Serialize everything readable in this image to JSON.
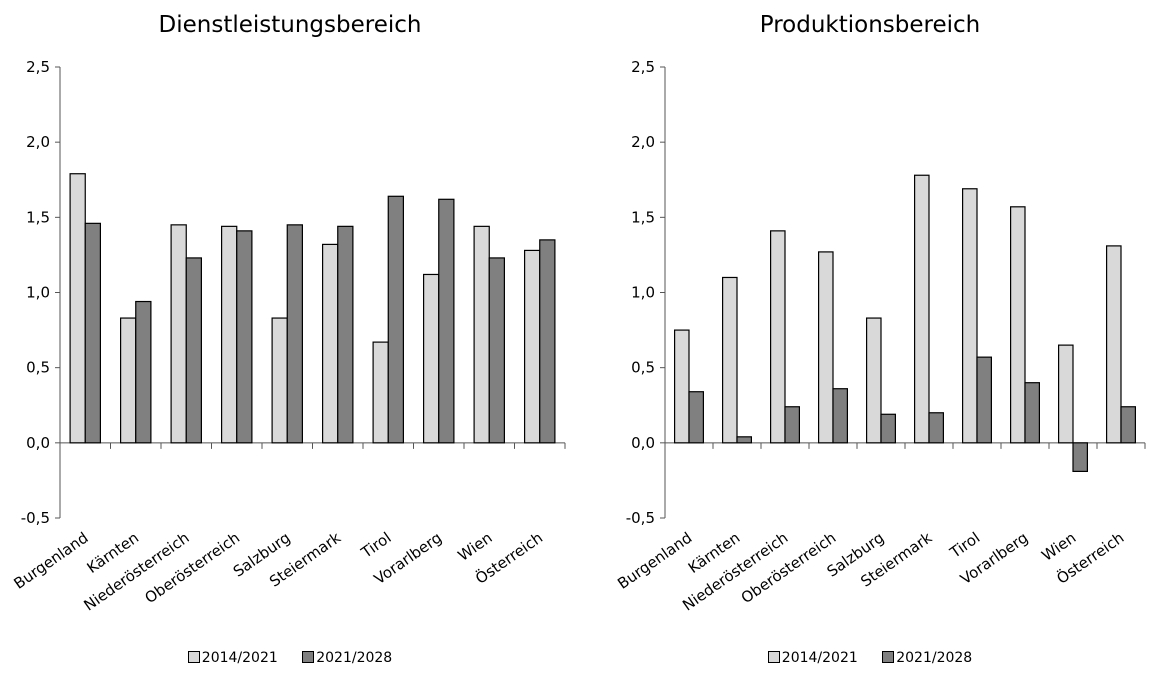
{
  "chart_data": [
    {
      "type": "bar",
      "title": "Dienstleistungsbereich",
      "categories": [
        "Burgenland",
        "Kärnten",
        "Niederösterreich",
        "Oberösterreich",
        "Salzburg",
        "Steiermark",
        "Tirol",
        "Vorarlberg",
        "Wien",
        "Österreich"
      ],
      "series": [
        {
          "name": "2014/2021",
          "color": "#d9d9d9",
          "values": [
            1.79,
            0.83,
            1.45,
            1.44,
            0.83,
            1.32,
            0.67,
            1.12,
            1.44,
            1.28
          ]
        },
        {
          "name": "2021/2028",
          "color": "#808080",
          "values": [
            1.46,
            0.94,
            1.23,
            1.41,
            1.45,
            1.44,
            1.64,
            1.62,
            1.23,
            1.35
          ]
        }
      ],
      "ylim": [
        -0.5,
        2.5
      ],
      "yticks": [
        "-0,5",
        "0,0",
        "0,5",
        "1,0",
        "1,5",
        "2,0",
        "2,5"
      ],
      "xlabel": "",
      "ylabel": "",
      "legend": "bottom"
    },
    {
      "type": "bar",
      "title": "Produktionsbereich",
      "categories": [
        "Burgenland",
        "Kärnten",
        "Niederösterreich",
        "Oberösterreich",
        "Salzburg",
        "Steiermark",
        "Tirol",
        "Vorarlberg",
        "Wien",
        "Österreich"
      ],
      "series": [
        {
          "name": "2014/2021",
          "color": "#d9d9d9",
          "values": [
            0.75,
            1.1,
            1.41,
            1.27,
            0.83,
            1.78,
            1.69,
            1.57,
            0.65,
            1.31
          ]
        },
        {
          "name": "2021/2028",
          "color": "#808080",
          "values": [
            0.34,
            0.04,
            0.24,
            0.36,
            0.19,
            0.2,
            0.57,
            0.4,
            -0.19,
            0.24
          ]
        }
      ],
      "ylim": [
        -0.5,
        2.5
      ],
      "yticks": [
        "-0,5",
        "0,0",
        "0,5",
        "1,0",
        "1,5",
        "2,0",
        "2,5"
      ],
      "xlabel": "",
      "ylabel": "",
      "legend": "bottom"
    }
  ]
}
